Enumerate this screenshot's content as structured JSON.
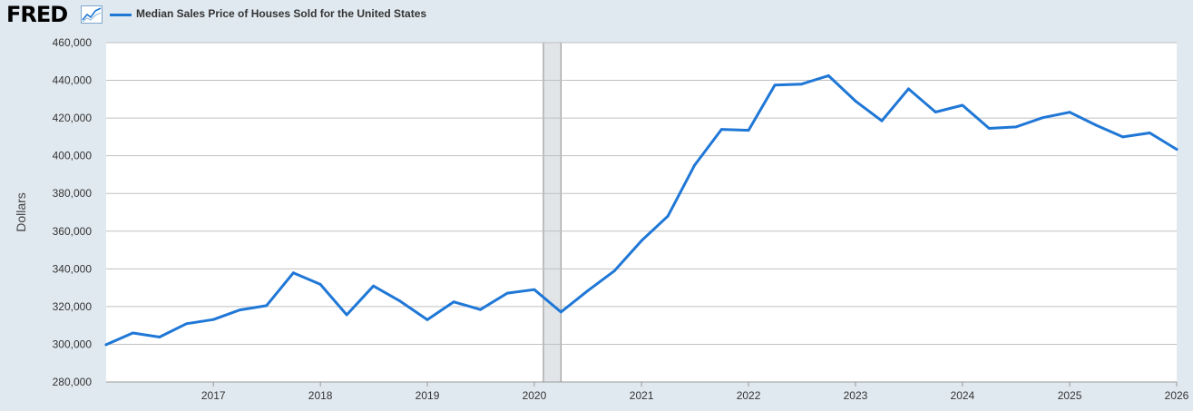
{
  "header": {
    "logo_text": "FRED",
    "series_label": "Median Sales Price of Houses Sold for the United States"
  },
  "colors": {
    "series": "#1f77d6",
    "background": "#e1e9f0",
    "plot": "#ffffff",
    "grid": "#c0c0c0",
    "recession": "#e1e5e8"
  },
  "chart_data": {
    "type": "line",
    "title": "",
    "xlabel": "",
    "ylabel": "Dollars",
    "ylim": [
      280000,
      460000
    ],
    "y_ticks": [
      280000,
      300000,
      320000,
      340000,
      360000,
      380000,
      400000,
      420000,
      440000,
      460000
    ],
    "y_tick_labels": [
      "280,000",
      "300,000",
      "320,000",
      "340,000",
      "360,000",
      "380,000",
      "400,000",
      "420,000",
      "440,000",
      "460,000"
    ],
    "xlim": [
      "2016-01-01",
      "2026-01-01"
    ],
    "x_ticks": [
      "2017",
      "2018",
      "2019",
      "2020",
      "2021",
      "2022",
      "2023",
      "2024",
      "2025",
      "2026"
    ],
    "grid": true,
    "recession_shading": [
      {
        "start": "2020-02-01",
        "end": "2020-04-01"
      }
    ],
    "series": [
      {
        "name": "Median Sales Price of Houses Sold for the United States",
        "x": [
          "2016-01-01",
          "2016-04-01",
          "2016-07-01",
          "2016-10-01",
          "2017-01-01",
          "2017-04-01",
          "2017-07-01",
          "2017-10-01",
          "2018-01-01",
          "2018-04-01",
          "2018-07-01",
          "2018-10-01",
          "2019-01-01",
          "2019-04-01",
          "2019-07-01",
          "2019-10-01",
          "2020-01-01",
          "2020-04-01",
          "2020-07-01",
          "2020-10-01",
          "2021-01-01",
          "2021-04-01",
          "2021-07-01",
          "2021-10-01",
          "2022-01-01",
          "2022-04-01",
          "2022-07-01",
          "2022-10-01",
          "2023-01-01",
          "2023-04-01",
          "2023-07-01",
          "2023-10-01",
          "2024-01-01",
          "2024-04-01",
          "2024-07-01",
          "2024-10-01",
          "2025-01-01",
          "2025-04-01",
          "2025-07-01",
          "2025-10-01",
          "2026-01-01"
        ],
        "values": [
          299800,
          306000,
          303800,
          310900,
          313100,
          318200,
          320500,
          337900,
          331800,
          315600,
          330900,
          322800,
          313000,
          322500,
          318400,
          327100,
          329000,
          317100,
          328300,
          339000,
          355000,
          368000,
          395000,
          414000,
          413500,
          437500,
          438000,
          442500,
          429000,
          418500,
          435500,
          423200,
          426800,
          414500,
          415300,
          420200,
          423100,
          416200,
          410000,
          412100,
          403400
        ]
      }
    ]
  }
}
